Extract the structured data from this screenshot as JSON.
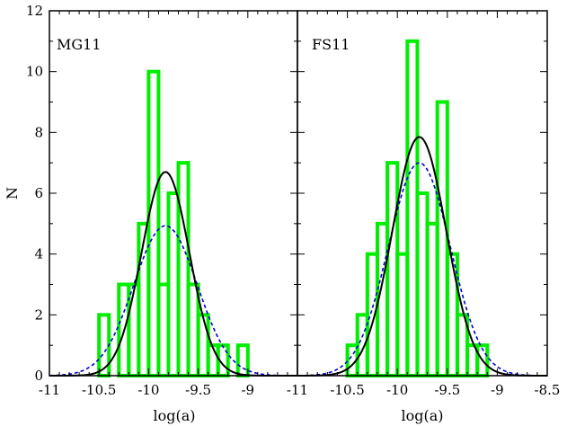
{
  "chart_data": {
    "type": "histogram-with-curves",
    "ylabel": "N",
    "ylim": [
      0,
      12
    ],
    "yticks": [
      0,
      2,
      4,
      6,
      8,
      10,
      12
    ],
    "colors": {
      "histogram": "#00ee00",
      "fit_solid": "#000000",
      "fit_dashed": "#0000cc"
    },
    "panels": [
      {
        "title": "MG11",
        "xlabel": "log(a)",
        "xlim": [
          -11,
          -8.5
        ],
        "xtick_values": [
          -11,
          -10.5,
          -10,
          -9.5,
          -9
        ],
        "xtick_labels": [
          "-11",
          "-10.5",
          "-10",
          "-9.5",
          "-9"
        ],
        "histogram": {
          "edges": [
            -10.5,
            -10.4,
            -10.3,
            -10.2,
            -10.1,
            -10.0,
            -9.9,
            -9.8,
            -9.7,
            -9.6,
            -9.5,
            -9.4,
            -9.3,
            -9.2,
            -9.1,
            -9.0,
            -8.9
          ],
          "counts": [
            2,
            0,
            3,
            3,
            5,
            10,
            3,
            6,
            7,
            3,
            2,
            1,
            1,
            0,
            1,
            0
          ]
        },
        "fit_solid": {
          "amplitude": 6.7,
          "mean": -9.83,
          "sigma": 0.24
        },
        "fit_dashed": {
          "amplitude": 4.93,
          "mean": -9.83,
          "sigma": 0.32
        }
      },
      {
        "title": "FS11",
        "xlabel": "log(a)",
        "xlim": [
          -11,
          -8.5
        ],
        "xtick_values": [
          -11,
          -10.5,
          -10,
          -9.5,
          -9,
          -8.5
        ],
        "xtick_labels": [
          "-11",
          "-10.5",
          "-10",
          "-9.5",
          "-9",
          "-8.5"
        ],
        "histogram": {
          "edges": [
            -10.5,
            -10.4,
            -10.3,
            -10.2,
            -10.1,
            -10.0,
            -9.9,
            -9.8,
            -9.7,
            -9.6,
            -9.5,
            -9.4,
            -9.3,
            -9.2,
            -9.1,
            -9.0,
            -8.9
          ],
          "counts": [
            1,
            2,
            4,
            5,
            7,
            4,
            11,
            6,
            5,
            9,
            4,
            2,
            1,
            1,
            0,
            0
          ]
        },
        "fit_solid": {
          "amplitude": 7.85,
          "mean": -9.78,
          "sigma": 0.27
        },
        "fit_dashed": {
          "amplitude": 7.0,
          "mean": -9.78,
          "sigma": 0.31
        }
      }
    ]
  }
}
